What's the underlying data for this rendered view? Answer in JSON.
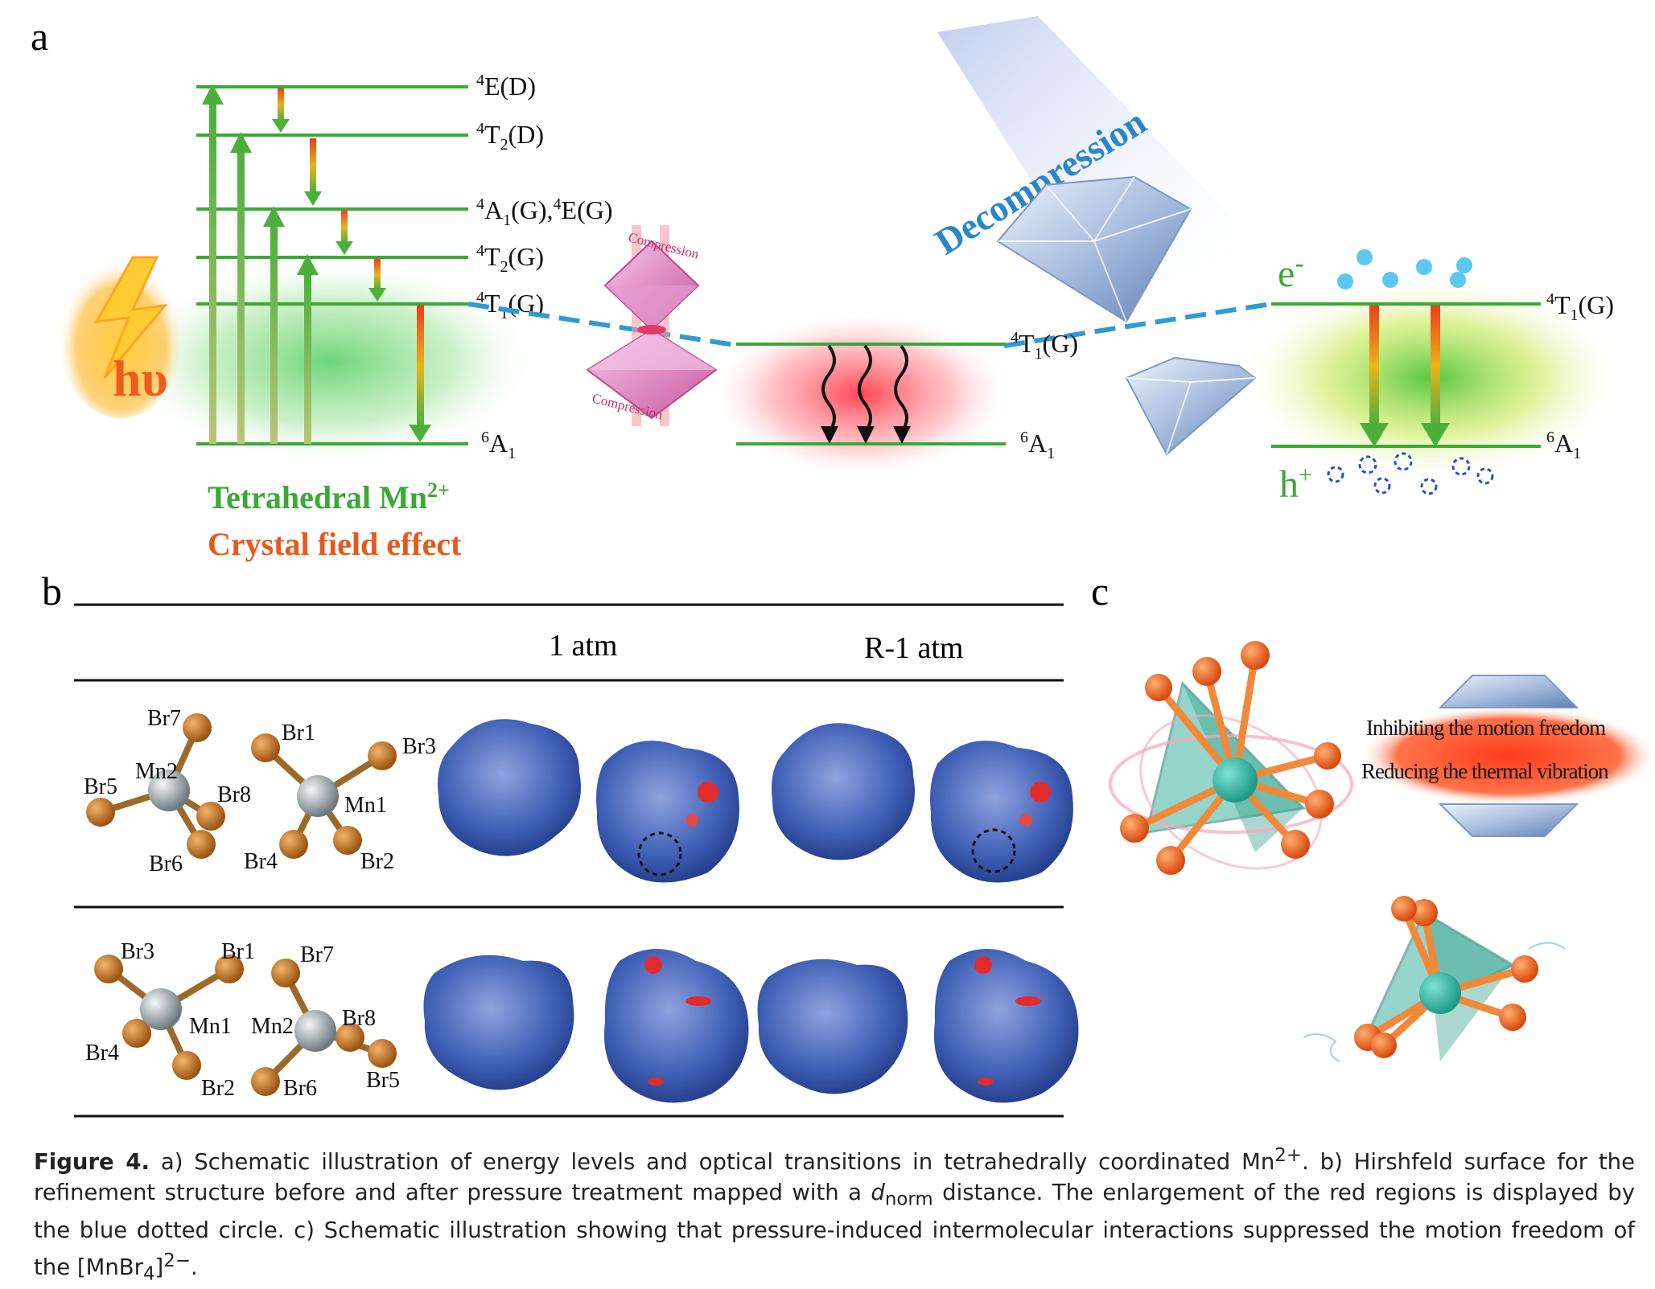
{
  "panel_a": {
    "label": "a",
    "levels": [
      "4E(D)",
      "4T2(D)",
      "4A1(G),4E(G)",
      "4T2(G)",
      "4T1(G)",
      "6A1"
    ],
    "level_labels": {
      "E_D": {
        "sup": "4",
        "main": "E(D)"
      },
      "T2_D": {
        "sup": "4",
        "main": "T",
        "sub": "2",
        "tail": "(D)"
      },
      "A1E_G": {
        "sup": "4",
        "main": "A",
        "sub": "1",
        "tail": "(G),",
        "sup2": "4",
        "tail2": "E(G)"
      },
      "T2_G": {
        "sup": "4",
        "main": "T",
        "sub": "2",
        "tail": "(G)"
      },
      "T1_G": {
        "sup": "4",
        "main": "T",
        "sub": "1",
        "tail": "(G)"
      },
      "A1": {
        "sup": "6",
        "main": "A",
        "sub": "1"
      }
    },
    "hv": "hυ",
    "title_line1": "Tetrahedral  Mn",
    "title_sup": "2+",
    "title_line2": "Crystal field effect",
    "compression_top": "Compression",
    "compression_bottom": "Compression",
    "decompression": "Decompression",
    "electron": "e",
    "electron_sup": "-",
    "hole": "h",
    "hole_sup": "+"
  },
  "panel_b": {
    "label": "b",
    "col1": "1 atm",
    "col2": "R-1 atm",
    "row1_atoms_left": [
      "Br7",
      "Mn2",
      "Br5",
      "Br8",
      "Br6"
    ],
    "row1_atoms_right": [
      "Br1",
      "Br3",
      "Mn1",
      "Br4",
      "Br2"
    ],
    "row2_atoms_left": [
      "Br3",
      "Br1",
      "Mn1",
      "Br4",
      "Br2"
    ],
    "row2_atoms_right": [
      "Br7",
      "Mn2",
      "Br8",
      "Br6",
      "Br5"
    ]
  },
  "panel_c": {
    "label": "c",
    "text1": "Inhibiting the motion freedom",
    "text2": "Reducing the thermal vibration"
  },
  "caption": {
    "label": "Figure 4.",
    "part1": " a) Schematic illustration of energy levels and optical transitions in tetrahedrally coordinated Mn",
    "sup1": "2+",
    "part2": ". b) Hirshfeld surface for the refinement structure before and after pressure treatment mapped with a ",
    "dnorm_d": "d",
    "dnorm_sub": "norm",
    "part3": " distance. The enlargement of the red regions is displayed by the blue dotted circle. c) Schematic illustration showing that pressure-induced intermolecular interactions suppressed the motion freedom of the [MnBr",
    "sub4": "4",
    "part4": "]",
    "sup2": "2−",
    "part5": "."
  },
  "colors": {
    "green_line": "#3aa935",
    "blue_dash": "#2f9ad6",
    "red_glow": "#ff3b4a",
    "orange": "#e8601c",
    "blue_surface": "#3f5fb5",
    "teal": "#3fb3a2",
    "decompression_blue": "#2a86c8"
  }
}
